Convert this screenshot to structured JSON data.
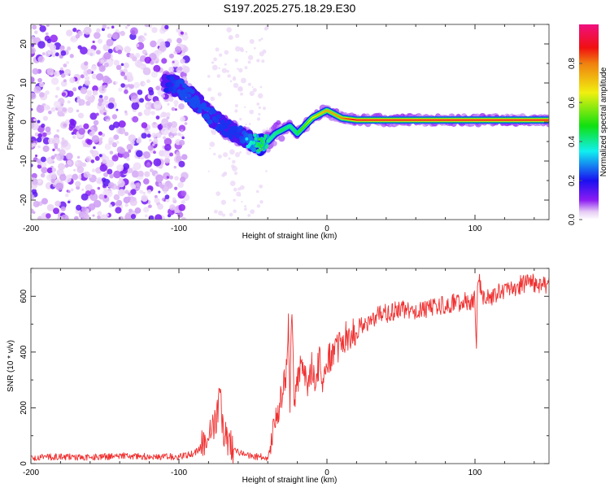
{
  "figure": {
    "title": "S197.2025.275.18.29.E30"
  },
  "chart_data": [
    {
      "type": "heatmap",
      "name": "spectrogram",
      "title": "S197.2025.275.18.29.E30",
      "xlabel": "Height of straight line (km)",
      "ylabel": "Frequency (Hz)",
      "xlim": [
        -200,
        150
      ],
      "ylim": [
        -25,
        25
      ],
      "xticks": [
        -200,
        -100,
        0,
        100
      ],
      "yticks": [
        -20,
        -10,
        0,
        10,
        20
      ],
      "grid": false,
      "colormap": "rainbow (white-purple-blue-cyan-green-yellow-red-pink)",
      "colorbar": {
        "label": "Normalized spectral amplitude",
        "range": [
          0.0,
          1.0
        ],
        "ticks": [
          "0.0",
          "0.2",
          "0.4",
          "0.6",
          "0.8"
        ],
        "stops": [
          {
            "v": 0.0,
            "color": "#ffffff"
          },
          {
            "v": 0.04,
            "color": "#e6ccf5"
          },
          {
            "v": 0.1,
            "color": "#8c1cf2"
          },
          {
            "v": 0.2,
            "color": "#1a10f0"
          },
          {
            "v": 0.35,
            "color": "#10f0f0"
          },
          {
            "v": 0.48,
            "color": "#10e010"
          },
          {
            "v": 0.65,
            "color": "#f0f010"
          },
          {
            "v": 0.8,
            "color": "#f08010"
          },
          {
            "v": 0.88,
            "color": "#f01010"
          },
          {
            "v": 1.0,
            "color": "#f01080"
          }
        ]
      },
      "ridge": {
        "description": "dominant frequency ridge vs height",
        "x": [
          -110,
          -100,
          -90,
          -80,
          -70,
          -60,
          -50,
          -45,
          -40,
          -35,
          -30,
          -25,
          -20,
          -15,
          -10,
          -5,
          0,
          5,
          10,
          20,
          50,
          100,
          150
        ],
        "y": [
          10,
          9,
          6,
          2,
          -1,
          -3,
          -5,
          -6,
          -5,
          -3,
          -2,
          -1,
          -3,
          -1,
          1,
          2,
          3,
          2,
          1,
          0.5,
          0.5,
          0.5,
          0.5
        ],
        "amplitude": [
          0.2,
          0.3,
          0.3,
          0.3,
          0.25,
          0.25,
          0.4,
          0.55,
          0.45,
          0.45,
          0.5,
          0.45,
          0.5,
          0.55,
          0.65,
          0.7,
          0.75,
          0.75,
          0.8,
          0.9,
          0.9,
          0.9,
          0.9
        ]
      },
      "noise_region": {
        "x_from": -200,
        "x_to": -105,
        "description": "scattered low-amplitude noise blobs"
      }
    },
    {
      "type": "line",
      "name": "snr",
      "xlabel": "Height of straight line (km)",
      "ylabel": "SNR (10 * v/v)",
      "xlim": [
        -200,
        150
      ],
      "ylim": [
        0,
        700
      ],
      "xticks": [
        -200,
        -100,
        0,
        100
      ],
      "yticks": [
        0,
        200,
        400,
        600
      ],
      "grid": false,
      "series": [
        {
          "name": "SNR",
          "color": "#f03030",
          "x": [
            -200,
            -180,
            -160,
            -140,
            -120,
            -100,
            -90,
            -85,
            -80,
            -75,
            -72,
            -70,
            -65,
            -60,
            -55,
            -50,
            -45,
            -40,
            -37,
            -35,
            -32,
            -30,
            -28,
            -26,
            -25,
            -24,
            -22,
            -20,
            -18,
            -15,
            -12,
            -10,
            -8,
            -5,
            -3,
            0,
            5,
            10,
            15,
            20,
            25,
            30,
            40,
            50,
            60,
            70,
            80,
            90,
            100,
            101,
            102,
            105,
            110,
            120,
            130,
            140,
            150
          ],
          "y": [
            20,
            25,
            22,
            28,
            25,
            25,
            35,
            60,
            90,
            150,
            250,
            110,
            70,
            40,
            30,
            25,
            25,
            20,
            80,
            150,
            200,
            250,
            300,
            530,
            150,
            565,
            180,
            300,
            340,
            320,
            280,
            360,
            310,
            370,
            300,
            380,
            400,
            440,
            460,
            480,
            500,
            520,
            540,
            550,
            550,
            560,
            570,
            580,
            585,
            430,
            680,
            590,
            600,
            620,
            640,
            650,
            640
          ]
        }
      ]
    }
  ]
}
